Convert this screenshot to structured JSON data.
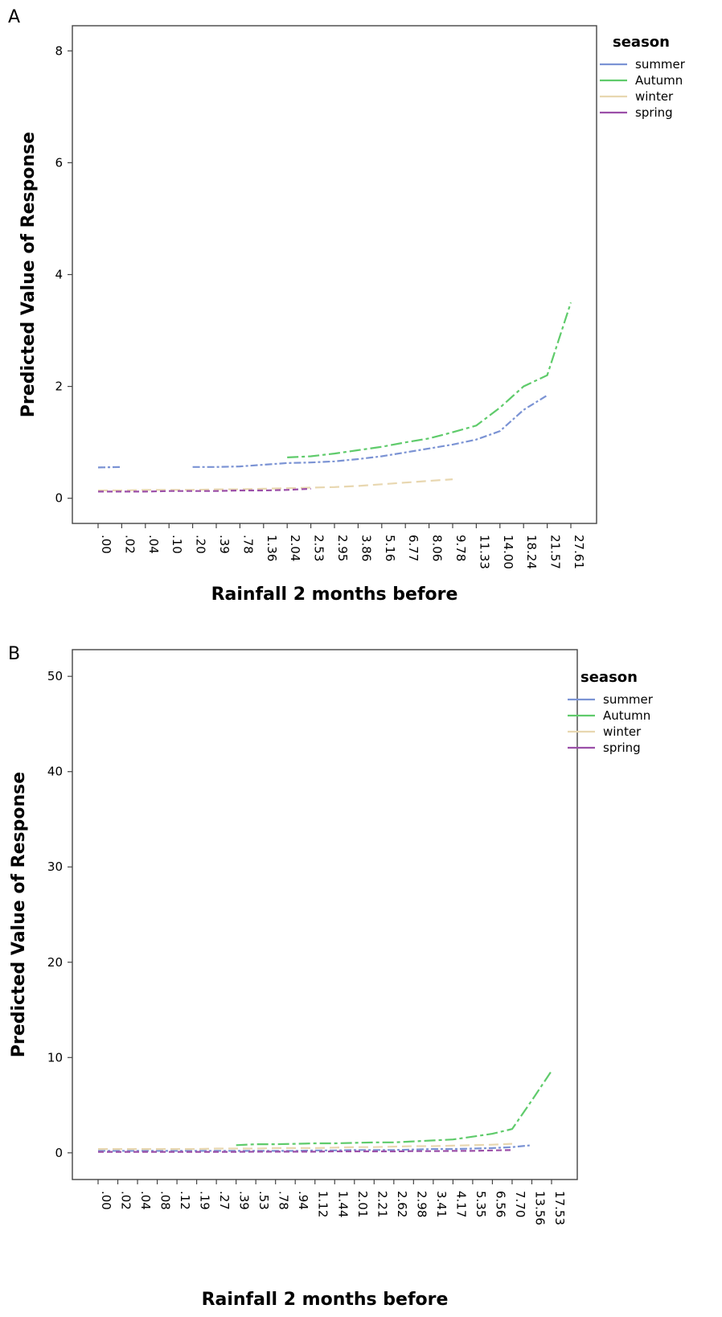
{
  "chart_data": [
    {
      "panel": "A",
      "type": "line",
      "xlabel": "Rainfall 2 months before",
      "ylabel": "Predicted Value of Response",
      "ylim": [
        -0.45,
        8.45
      ],
      "yticks": [
        0,
        2,
        4,
        6,
        8
      ],
      "categories": [
        ".00",
        ".02",
        ".04",
        ".10",
        ".20",
        ".39",
        ".78",
        "1.36",
        "2.04",
        "2.53",
        "2.95",
        "3.86",
        "5.16",
        "6.77",
        "8.06",
        "9.78",
        "11.33",
        "14.00",
        "18.24",
        "21.57",
        "27.61"
      ],
      "legend": {
        "title": "season",
        "placement": "top-right"
      },
      "series": [
        {
          "name": "summer",
          "color": "#7b93d4",
          "dash": "segments",
          "values": [
            0.55,
            0.56,
            null,
            null,
            0.56,
            0.56,
            0.57,
            0.6,
            0.63,
            0.64,
            0.66,
            0.7,
            0.75,
            0.82,
            0.89,
            0.96,
            1.05,
            1.2,
            1.58,
            1.84,
            null
          ]
        },
        {
          "name": "Autumn",
          "color": "#5fcb6b",
          "dash": "solid-ends",
          "values": [
            null,
            null,
            null,
            null,
            null,
            null,
            null,
            null,
            0.73,
            0.75,
            0.8,
            0.86,
            0.92,
            1.0,
            1.07,
            1.18,
            1.3,
            1.62,
            2.0,
            2.2,
            3.5
          ]
        },
        {
          "name": "winter",
          "color": "#e8d7b0",
          "dash": "long-dash",
          "values": [
            0.14,
            0.14,
            0.15,
            0.15,
            0.15,
            0.16,
            0.16,
            0.17,
            0.18,
            0.19,
            0.2,
            0.22,
            0.25,
            0.28,
            0.31,
            0.34,
            null,
            null,
            null,
            null,
            null
          ]
        },
        {
          "name": "spring",
          "color": "#9b4fa8",
          "dash": "dash",
          "values": [
            0.12,
            0.12,
            0.12,
            0.13,
            0.13,
            0.13,
            0.14,
            0.14,
            0.15,
            0.17,
            null,
            null,
            null,
            null,
            null,
            null,
            null,
            null,
            null,
            null,
            null
          ]
        }
      ]
    },
    {
      "panel": "B",
      "type": "line",
      "xlabel": "Rainfall 2 months before",
      "ylabel": "Predicted Value of Response",
      "ylim": [
        -2.8,
        52.8
      ],
      "yticks": [
        0,
        10,
        20,
        30,
        40,
        50
      ],
      "categories": [
        ".00",
        ".02",
        ".04",
        ".08",
        ".12",
        ".19",
        ".27",
        ".39",
        ".53",
        ".78",
        ".94",
        "1.12",
        "1.44",
        "2.01",
        "2.21",
        "2.62",
        "2.98",
        "3.41",
        "4.17",
        "5.35",
        "6.56",
        "7.70",
        "13.56",
        "17.53"
      ],
      "legend": {
        "title": "season",
        "placement": "top-right"
      },
      "series": [
        {
          "name": "summer",
          "color": "#7b93d4",
          "dash": "segments",
          "values": [
            0.2,
            0.2,
            0.2,
            0.2,
            0.2,
            0.2,
            0.2,
            0.2,
            0.2,
            0.2,
            0.2,
            0.25,
            0.25,
            0.3,
            0.3,
            0.3,
            0.35,
            0.4,
            0.4,
            0.45,
            0.5,
            0.6,
            0.8,
            null
          ]
        },
        {
          "name": "Autumn",
          "color": "#5fcb6b",
          "dash": "solid-ends",
          "values": [
            null,
            null,
            null,
            null,
            null,
            null,
            null,
            0.8,
            0.9,
            0.9,
            0.95,
            1.0,
            1.0,
            1.05,
            1.1,
            1.1,
            1.2,
            1.3,
            1.4,
            1.7,
            2.0,
            2.5,
            5.5,
            8.6
          ]
        },
        {
          "name": "winter",
          "color": "#e8d7b0",
          "dash": "long-dash",
          "values": [
            0.4,
            0.4,
            0.4,
            0.4,
            0.4,
            0.4,
            0.45,
            0.45,
            0.45,
            0.5,
            0.5,
            0.5,
            0.55,
            0.6,
            0.6,
            0.65,
            0.7,
            0.7,
            0.75,
            0.8,
            0.85,
            0.95,
            null,
            null
          ]
        },
        {
          "name": "spring",
          "color": "#9b4fa8",
          "dash": "dash",
          "values": [
            0.1,
            0.1,
            0.1,
            0.1,
            0.1,
            0.1,
            0.1,
            0.1,
            0.12,
            0.12,
            0.12,
            0.12,
            0.15,
            0.15,
            0.15,
            0.15,
            0.18,
            0.18,
            0.2,
            0.2,
            0.25,
            0.3,
            null,
            null
          ]
        }
      ]
    }
  ]
}
